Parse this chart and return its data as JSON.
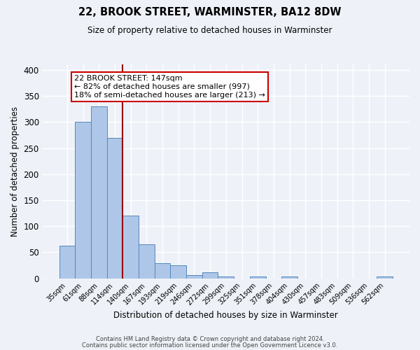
{
  "title": "22, BROOK STREET, WARMINSTER, BA12 8DW",
  "subtitle": "Size of property relative to detached houses in Warminster",
  "xlabel": "Distribution of detached houses by size in Warminster",
  "ylabel": "Number of detached properties",
  "bin_labels": [
    "35sqm",
    "61sqm",
    "88sqm",
    "114sqm",
    "140sqm",
    "167sqm",
    "193sqm",
    "219sqm",
    "246sqm",
    "272sqm",
    "299sqm",
    "325sqm",
    "351sqm",
    "378sqm",
    "404sqm",
    "430sqm",
    "457sqm",
    "483sqm",
    "509sqm",
    "536sqm",
    "562sqm"
  ],
  "bin_values": [
    63,
    300,
    330,
    270,
    120,
    65,
    29,
    25,
    6,
    12,
    4,
    0,
    4,
    0,
    3,
    0,
    0,
    0,
    0,
    0,
    3
  ],
  "bar_color": "#aec6e8",
  "bar_edge_color": "#5588bb",
  "background_color": "#eef2f8",
  "grid_color": "#ffffff",
  "marker_line_color": "#990000",
  "annotation_text": "22 BROOK STREET: 147sqm\n← 82% of detached houses are smaller (997)\n18% of semi-detached houses are larger (213) →",
  "annotation_box_color": "#ffffff",
  "annotation_box_edge_color": "#cc0000",
  "ylim": [
    0,
    410
  ],
  "yticks": [
    0,
    50,
    100,
    150,
    200,
    250,
    300,
    350,
    400
  ],
  "footer_line1": "Contains HM Land Registry data © Crown copyright and database right 2024.",
  "footer_line2": "Contains public sector information licensed under the Open Government Licence v3.0."
}
